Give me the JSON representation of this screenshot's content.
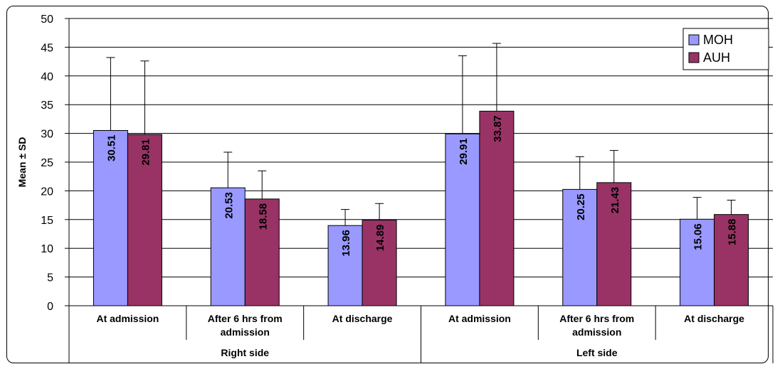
{
  "chart_data": {
    "type": "bar",
    "ylabel": "Mean ± SD",
    "ylim": [
      0,
      50
    ],
    "yticks": [
      0,
      5,
      10,
      15,
      20,
      25,
      30,
      35,
      40,
      45,
      50
    ],
    "grid": true,
    "legend_position": "top-right",
    "groups": [
      {
        "label": "Right side",
        "categories": [
          "At admission",
          [
            "After 6 hrs from",
            "admission"
          ],
          "At discharge"
        ]
      },
      {
        "label": "Left side",
        "categories": [
          "At admission",
          [
            "After 6 hrs from",
            "admission"
          ],
          "At discharge"
        ]
      }
    ],
    "series": [
      {
        "name": "MOH",
        "color": "#9999ff",
        "values": [
          30.51,
          20.53,
          13.96,
          29.91,
          20.25,
          15.06
        ],
        "sd": [
          12.7,
          6.2,
          2.8,
          13.6,
          5.7,
          3.8
        ]
      },
      {
        "name": "AUH",
        "color": "#993366",
        "values": [
          29.81,
          18.58,
          14.89,
          33.87,
          21.43,
          15.88
        ],
        "sd": [
          12.8,
          4.9,
          2.9,
          11.8,
          5.6,
          2.5
        ]
      }
    ]
  }
}
